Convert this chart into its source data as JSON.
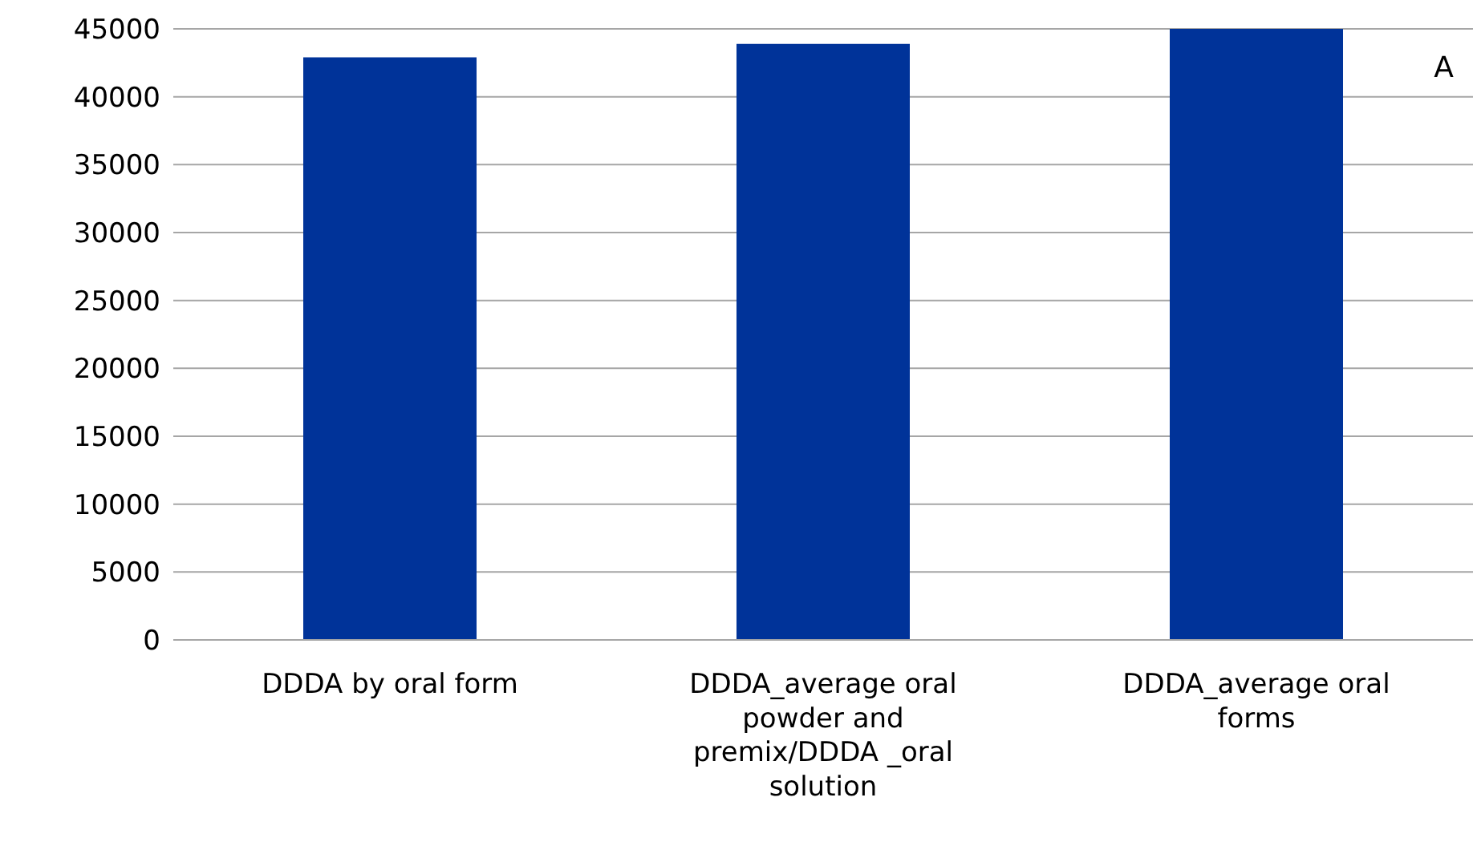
{
  "chart_data": {
    "type": "bar",
    "categories": [
      "DDDA by oral form",
      "DDDA_average oral powder and premix/DDDA _oral solution",
      "DDDA_average oral forms"
    ],
    "values": [
      42900,
      43900,
      45000
    ],
    "color": "#003399",
    "ylim": [
      0,
      45000
    ],
    "yticks": [
      0,
      5000,
      10000,
      15000,
      20000,
      25000,
      30000,
      35000,
      40000,
      45000
    ],
    "grid": "y",
    "annotations": [
      "A"
    ]
  }
}
